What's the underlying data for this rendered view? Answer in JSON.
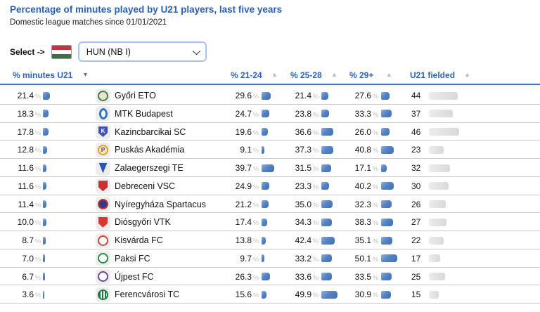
{
  "page": {
    "title": "Percentage of minutes played by U21 players, last five years",
    "subtitle": "Domestic league matches since 01/01/2021"
  },
  "selector": {
    "label": "Select ->",
    "selected_option": "HUN (NB I)",
    "flag_icon": "hungary-flag-icon",
    "flag_colors": {
      "top": "#c8313e",
      "middle": "#ffffff",
      "bottom": "#3d6e46"
    },
    "chevron_icon": "chevron-down-icon"
  },
  "table": {
    "columns": [
      {
        "label": "% minutes U21",
        "sort": "desc",
        "sort_icon": "sort-desc-icon"
      },
      {
        "label": "% 21-24",
        "sort": "asc",
        "sort_icon": "sort-asc-icon"
      },
      {
        "label": "% 25-28",
        "sort": "asc",
        "sort_icon": "sort-asc-icon"
      },
      {
        "label": "% 29+",
        "sort": "asc",
        "sort_icon": "sort-asc-icon"
      },
      {
        "label": "U21 fielded",
        "sort": "asc",
        "sort_icon": "sort-asc-icon"
      }
    ],
    "rows": [
      {
        "team": "Győri ETO",
        "pct_minutes_u21": "21.4",
        "pct_21_24": "29.6",
        "pct_25_28": "21.4",
        "pct_29_plus": "27.6",
        "u21_fielded": "44",
        "logo": {
          "icon": "gyori-eto-crest-icon",
          "shape": "circle",
          "border": "#3f7d4e",
          "fill": "#ece4c6",
          "letter": "",
          "letter_color": ""
        }
      },
      {
        "team": "MTK Budapest",
        "pct_minutes_u21": "18.3",
        "pct_21_24": "24.7",
        "pct_25_28": "23.8",
        "pct_29_plus": "33.3",
        "u21_fielded": "37",
        "logo": {
          "icon": "mtk-budapest-crest-icon",
          "shape": "oval",
          "border": "#2f76c6",
          "fill": "#ffffff",
          "letter": "",
          "letter_color": ""
        }
      },
      {
        "team": "Kazincbarcikai SC",
        "pct_minutes_u21": "17.8",
        "pct_21_24": "19.6",
        "pct_25_28": "36.6",
        "pct_29_plus": "26.0",
        "u21_fielded": "46",
        "logo": {
          "icon": "kazincbarcikai-crest-icon",
          "shape": "shield",
          "border": "#4053b4",
          "fill": "#4053b4",
          "letter": "K",
          "letter_color": "#ffffff"
        }
      },
      {
        "team": "Puskás Akadémia",
        "pct_minutes_u21": "12.8",
        "pct_21_24": "9.1",
        "pct_25_28": "37.3",
        "pct_29_plus": "40.8",
        "u21_fielded": "23",
        "logo": {
          "icon": "puskas-akademia-crest-icon",
          "shape": "circle",
          "border": "#d9a620",
          "fill": "#f6e9b8",
          "letter": "P",
          "letter_color": "#5a2d82"
        }
      },
      {
        "team": "Zalaegerszegi TE",
        "pct_minutes_u21": "11.6",
        "pct_21_24": "39.7",
        "pct_25_28": "31.5",
        "pct_29_plus": "17.1",
        "u21_fielded": "32",
        "logo": {
          "icon": "zalaegerszegi-crest-icon",
          "shape": "pennant",
          "border": "#2458b8",
          "fill": "#2458b8",
          "letter": "",
          "letter_color": ""
        }
      },
      {
        "team": "Debreceni VSC",
        "pct_minutes_u21": "11.6",
        "pct_21_24": "24.9",
        "pct_25_28": "23.3",
        "pct_29_plus": "40.2",
        "u21_fielded": "30",
        "logo": {
          "icon": "debreceni-crest-icon",
          "shape": "shield",
          "border": "#c8322e",
          "fill": "#c8322e",
          "letter": "",
          "letter_color": ""
        }
      },
      {
        "team": "Nyíregyháza Spartacus",
        "pct_minutes_u21": "11.4",
        "pct_21_24": "21.2",
        "pct_25_28": "35.0",
        "pct_29_plus": "32.3",
        "u21_fielded": "26",
        "logo": {
          "icon": "nyiregyhaza-crest-icon",
          "shape": "circle",
          "border": "#c0392b",
          "fill": "#32398f",
          "letter": "",
          "letter_color": ""
        }
      },
      {
        "team": "Diósgyőri VTK",
        "pct_minutes_u21": "10.0",
        "pct_21_24": "17.4",
        "pct_25_28": "34.3",
        "pct_29_plus": "38.3",
        "u21_fielded": "27",
        "logo": {
          "icon": "diosgyori-crest-icon",
          "shape": "shield",
          "border": "#d63a34",
          "fill": "#d63a34",
          "letter": "",
          "letter_color": ""
        }
      },
      {
        "team": "Kisvárda FC",
        "pct_minutes_u21": "8.7",
        "pct_21_24": "13.8",
        "pct_25_28": "42.4",
        "pct_29_plus": "35.1",
        "u21_fielded": "22",
        "logo": {
          "icon": "kisvarda-crest-icon",
          "shape": "circle",
          "border": "#cc4444",
          "fill": "#ffffff",
          "letter": "",
          "letter_color": ""
        }
      },
      {
        "team": "Paksi FC",
        "pct_minutes_u21": "7.0",
        "pct_21_24": "9.7",
        "pct_25_28": "33.2",
        "pct_29_plus": "50.1",
        "u21_fielded": "17",
        "logo": {
          "icon": "paksi-crest-icon",
          "shape": "circle",
          "border": "#2e8b44",
          "fill": "#ffffff",
          "letter": "",
          "letter_color": ""
        }
      },
      {
        "team": "Újpest FC",
        "pct_minutes_u21": "6.7",
        "pct_21_24": "26.3",
        "pct_25_28": "33.6",
        "pct_29_plus": "33.5",
        "u21_fielded": "25",
        "logo": {
          "icon": "ujpest-crest-icon",
          "shape": "circle",
          "border": "#6a4b96",
          "fill": "#ffffff",
          "letter": "",
          "letter_color": ""
        }
      },
      {
        "team": "Ferencvárosi TC",
        "pct_minutes_u21": "3.6",
        "pct_21_24": "15.6",
        "pct_25_28": "49.9",
        "pct_29_plus": "30.9",
        "u21_fielded": "15",
        "logo": {
          "icon": "ferencvarosi-crest-icon",
          "shape": "stripes",
          "border": "#1d7a3c",
          "fill": "#ffffff",
          "letter": "",
          "letter_color": ""
        }
      }
    ]
  },
  "colors": {
    "title_text": "#2b5fb3",
    "header_text": "#2b62bd",
    "header_underline": "#3e74c7",
    "bar_blue": "#4a78bd",
    "bar_gray": "#dcdcdc",
    "percent_sign": "#c0c0c0",
    "row_divider": "#cbcbcb",
    "select_border": "#a6c4f2"
  }
}
